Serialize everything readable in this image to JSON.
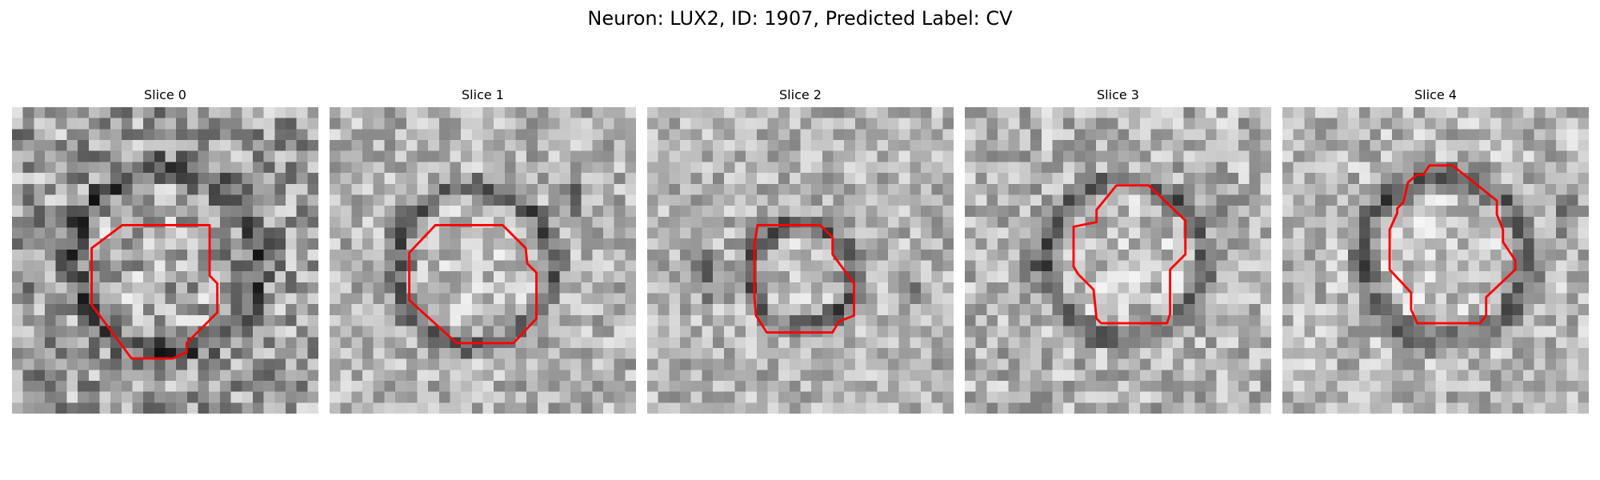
{
  "figure": {
    "title": "Neuron: LUX2, ID: 1907, Predicted Label: CV"
  },
  "slices": [
    {
      "title": "Slice 0",
      "contour_color": "#ff0000",
      "contour": [
        [
          0.36,
          0.385
        ],
        [
          0.645,
          0.385
        ],
        [
          0.645,
          0.42
        ],
        [
          0.645,
          0.445
        ],
        [
          0.645,
          0.48
        ],
        [
          0.645,
          0.52
        ],
        [
          0.645,
          0.55
        ],
        [
          0.67,
          0.575
        ],
        [
          0.67,
          0.67
        ],
        [
          0.57,
          0.77
        ],
        [
          0.57,
          0.8
        ],
        [
          0.525,
          0.82
        ],
        [
          0.39,
          0.82
        ],
        [
          0.26,
          0.645
        ],
        [
          0.26,
          0.46
        ]
      ]
    },
    {
      "title": "Slice 1",
      "contour_color": "#ff0000",
      "contour": [
        [
          0.345,
          0.385
        ],
        [
          0.565,
          0.385
        ],
        [
          0.64,
          0.46
        ],
        [
          0.645,
          0.51
        ],
        [
          0.675,
          0.54
        ],
        [
          0.675,
          0.69
        ],
        [
          0.6,
          0.77
        ],
        [
          0.575,
          0.77
        ],
        [
          0.415,
          0.77
        ],
        [
          0.26,
          0.63
        ],
        [
          0.26,
          0.475
        ]
      ]
    },
    {
      "title": "Slice 2",
      "contour_color": "#ff0000",
      "contour": [
        [
          0.36,
          0.385
        ],
        [
          0.565,
          0.385
        ],
        [
          0.605,
          0.425
        ],
        [
          0.605,
          0.48
        ],
        [
          0.675,
          0.575
        ],
        [
          0.675,
          0.68
        ],
        [
          0.625,
          0.7
        ],
        [
          0.605,
          0.735
        ],
        [
          0.39,
          0.735
        ],
        [
          0.355,
          0.68
        ],
        [
          0.35,
          0.62
        ],
        [
          0.35,
          0.45
        ]
      ]
    },
    {
      "title": "Slice 3",
      "contour_color": "#ff0000",
      "contour": [
        [
          0.495,
          0.255
        ],
        [
          0.6,
          0.255
        ],
        [
          0.72,
          0.37
        ],
        [
          0.72,
          0.48
        ],
        [
          0.67,
          0.53
        ],
        [
          0.67,
          0.675
        ],
        [
          0.66,
          0.705
        ],
        [
          0.445,
          0.705
        ],
        [
          0.43,
          0.69
        ],
        [
          0.42,
          0.595
        ],
        [
          0.37,
          0.545
        ],
        [
          0.355,
          0.52
        ],
        [
          0.355,
          0.39
        ],
        [
          0.43,
          0.375
        ],
        [
          0.43,
          0.335
        ]
      ]
    },
    {
      "title": "Slice 4",
      "contour_color": "#ff0000",
      "contour": [
        [
          0.48,
          0.19
        ],
        [
          0.555,
          0.19
        ],
        [
          0.7,
          0.305
        ],
        [
          0.7,
          0.35
        ],
        [
          0.72,
          0.4
        ],
        [
          0.72,
          0.44
        ],
        [
          0.76,
          0.5
        ],
        [
          0.76,
          0.53
        ],
        [
          0.665,
          0.62
        ],
        [
          0.665,
          0.68
        ],
        [
          0.645,
          0.705
        ],
        [
          0.44,
          0.705
        ],
        [
          0.42,
          0.66
        ],
        [
          0.42,
          0.605
        ],
        [
          0.35,
          0.53
        ],
        [
          0.35,
          0.4
        ],
        [
          0.375,
          0.345
        ],
        [
          0.375,
          0.33
        ],
        [
          0.395,
          0.31
        ],
        [
          0.41,
          0.245
        ],
        [
          0.44,
          0.22
        ],
        [
          0.46,
          0.22
        ]
      ]
    }
  ]
}
